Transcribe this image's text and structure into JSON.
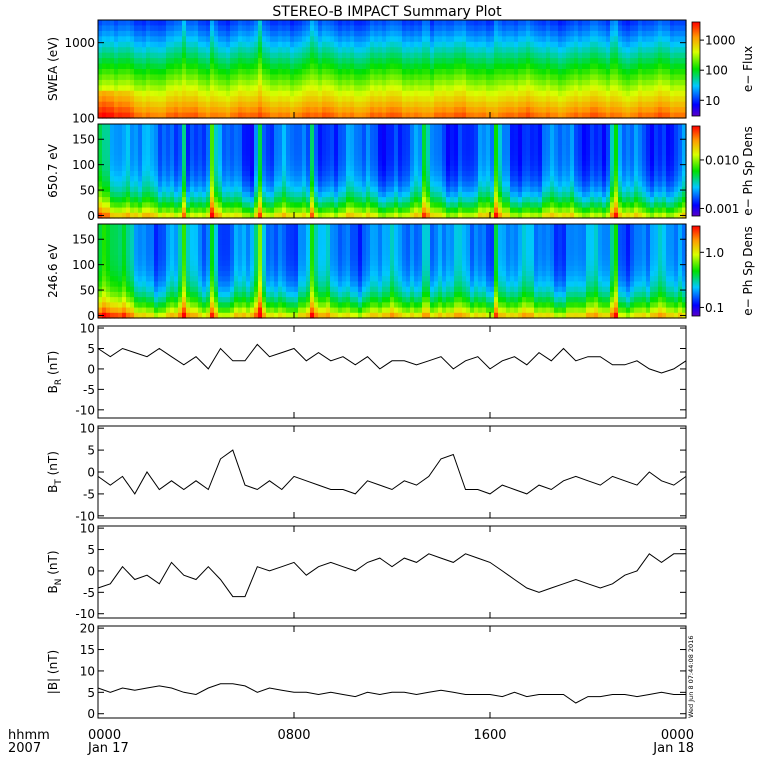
{
  "chart_data": {
    "title": "STEREO-B IMPACT Summary Plot",
    "time_axis": {
      "corner_labels": [
        "hhmm",
        "2007"
      ],
      "ticks": [
        {
          "hour": 0,
          "line1": "0000",
          "line2": "Jan 17"
        },
        {
          "hour": 8,
          "line1": "0800",
          "line2": ""
        },
        {
          "hour": 16,
          "line1": "1600",
          "line2": ""
        },
        {
          "hour": 24,
          "line1": "0000",
          "line2": "Jan 18"
        }
      ],
      "range_hours": [
        0,
        24
      ]
    },
    "spectrograms": [
      {
        "type": "heatmap",
        "ylabel": "SWEA (eV)",
        "yscale": "log",
        "ylim": [
          100,
          2000
        ],
        "y_ticks": [
          "1000",
          "100"
        ],
        "colorbar_label": "e− Flux",
        "colorbar_ticks": [
          "1000",
          "100",
          "10"
        ],
        "colorbar_scale": "log",
        "colorbar_range": [
          3,
          4000
        ]
      },
      {
        "type": "heatmap",
        "ylabel": "650.7 eV",
        "yscale": "linear",
        "ylim": [
          -5,
          180
        ],
        "y_ticks": [
          "150",
          "100",
          "50",
          "0"
        ],
        "colorbar_label": "e− Ph Sp Dens",
        "colorbar_ticks": [
          "0.010",
          "0.001"
        ],
        "colorbar_scale": "log",
        "colorbar_range": [
          0.0007,
          0.05
        ]
      },
      {
        "type": "heatmap",
        "ylabel": "246.6 eV",
        "yscale": "linear",
        "ylim": [
          -5,
          180
        ],
        "y_ticks": [
          "150",
          "100",
          "50",
          "0"
        ],
        "colorbar_label": "e− Ph Sp Dens",
        "colorbar_ticks": [
          "1.0",
          "0.1"
        ],
        "colorbar_scale": "log",
        "colorbar_range": [
          0.07,
          3
        ]
      }
    ],
    "line_panels": [
      {
        "type": "line",
        "ylabel_main": "B",
        "ylabel_sub": "R",
        "ylabel_unit": " (nT)",
        "ylim": [
          -12,
          10.5
        ],
        "y_ticks": [
          10,
          5,
          0,
          -5,
          -10
        ],
        "x": [
          0,
          0.5,
          1,
          1.5,
          2,
          2.5,
          3,
          3.5,
          4,
          4.5,
          5,
          5.5,
          6,
          6.5,
          7,
          7.5,
          8,
          8.5,
          9,
          9.5,
          10,
          10.5,
          11,
          11.5,
          12,
          12.5,
          13,
          13.5,
          14,
          14.5,
          15,
          15.5,
          16,
          16.5,
          17,
          17.5,
          18,
          18.5,
          19,
          19.5,
          20,
          20.5,
          21,
          21.5,
          22,
          22.5,
          23,
          23.5,
          24
        ],
        "y": [
          5,
          3,
          5,
          4,
          3,
          5,
          3,
          1,
          3,
          0,
          5,
          2,
          2,
          6,
          3,
          4,
          5,
          2,
          4,
          2,
          3,
          1,
          3,
          0,
          2,
          2,
          1,
          2,
          3,
          0,
          2,
          3,
          0,
          2,
          3,
          1,
          4,
          2,
          5,
          2,
          3,
          3,
          1,
          1,
          2,
          0,
          -1,
          0,
          2
        ]
      },
      {
        "type": "line",
        "ylabel_main": "B",
        "ylabel_sub": "T",
        "ylabel_unit": " (nT)",
        "ylim": [
          -10.5,
          10.5
        ],
        "y_ticks": [
          10,
          5,
          0,
          -5,
          -10
        ],
        "x": [
          0,
          0.5,
          1,
          1.5,
          2,
          2.5,
          3,
          3.5,
          4,
          4.5,
          5,
          5.5,
          6,
          6.5,
          7,
          7.5,
          8,
          8.5,
          9,
          9.5,
          10,
          10.5,
          11,
          11.5,
          12,
          12.5,
          13,
          13.5,
          14,
          14.5,
          15,
          15.5,
          16,
          16.5,
          17,
          17.5,
          18,
          18.5,
          19,
          19.5,
          20,
          20.5,
          21,
          21.5,
          22,
          22.5,
          23,
          23.5,
          24
        ],
        "y": [
          -1,
          -3,
          -1,
          -5,
          0,
          -4,
          -2,
          -4,
          -2,
          -4,
          3,
          5,
          -3,
          -4,
          -2,
          -4,
          -1,
          -2,
          -3,
          -4,
          -4,
          -5,
          -2,
          -3,
          -4,
          -2,
          -3,
          -1,
          3,
          4,
          -4,
          -4,
          -5,
          -3,
          -4,
          -5,
          -3,
          -4,
          -2,
          -1,
          -2,
          -3,
          -1,
          -2,
          -3,
          0,
          -2,
          -3,
          -1
        ]
      },
      {
        "type": "line",
        "ylabel_main": "B",
        "ylabel_sub": "N",
        "ylabel_unit": " (nT)",
        "ylim": [
          -11,
          10.5
        ],
        "y_ticks": [
          10,
          5,
          0,
          -5,
          -10
        ],
        "x": [
          0,
          0.5,
          1,
          1.5,
          2,
          2.5,
          3,
          3.5,
          4,
          4.5,
          5,
          5.5,
          6,
          6.5,
          7,
          7.5,
          8,
          8.5,
          9,
          9.5,
          10,
          10.5,
          11,
          11.5,
          12,
          12.5,
          13,
          13.5,
          14,
          14.5,
          15,
          15.5,
          16,
          16.5,
          17,
          17.5,
          18,
          18.5,
          19,
          19.5,
          20,
          20.5,
          21,
          21.5,
          22,
          22.5,
          23,
          23.5,
          24
        ],
        "y": [
          -4,
          -3,
          1,
          -2,
          -1,
          -3,
          2,
          -1,
          -2,
          1,
          -2,
          -6,
          -6,
          1,
          0,
          1,
          2,
          -1,
          1,
          2,
          1,
          0,
          2,
          3,
          1,
          3,
          2,
          4,
          3,
          2,
          4,
          3,
          2,
          0,
          -2,
          -4,
          -5,
          -4,
          -3,
          -2,
          -3,
          -4,
          -3,
          -1,
          0,
          4,
          2,
          4,
          4
        ]
      },
      {
        "type": "line",
        "ylabel_main": "|B|",
        "ylabel_sub": "",
        "ylabel_unit": " (nT)",
        "ylim": [
          -1,
          20.5
        ],
        "y_ticks": [
          20,
          15,
          10,
          5,
          0
        ],
        "x": [
          0,
          0.5,
          1,
          1.5,
          2,
          2.5,
          3,
          3.5,
          4,
          4.5,
          5,
          5.5,
          6,
          6.5,
          7,
          7.5,
          8,
          8.5,
          9,
          9.5,
          10,
          10.5,
          11,
          11.5,
          12,
          12.5,
          13,
          13.5,
          14,
          14.5,
          15,
          15.5,
          16,
          16.5,
          17,
          17.5,
          18,
          18.5,
          19,
          19.5,
          20,
          20.5,
          21,
          21.5,
          22,
          22.5,
          23,
          23.5,
          24
        ],
        "y": [
          6,
          5,
          6,
          5.5,
          6,
          6.5,
          6,
          5,
          4.5,
          6,
          7,
          7,
          6.5,
          5,
          6,
          5.5,
          5,
          5,
          4.5,
          5,
          4.5,
          4,
          5,
          4.5,
          5,
          5,
          4.5,
          5,
          5.5,
          5,
          4.5,
          4.5,
          4.5,
          4,
          5,
          4,
          4.5,
          4.5,
          4.5,
          2.5,
          4,
          4,
          4.5,
          4.5,
          4,
          4.5,
          5,
          4.5,
          4.5
        ]
      }
    ],
    "timestamp": "Wed Jun  8 07:44:08 2016"
  }
}
